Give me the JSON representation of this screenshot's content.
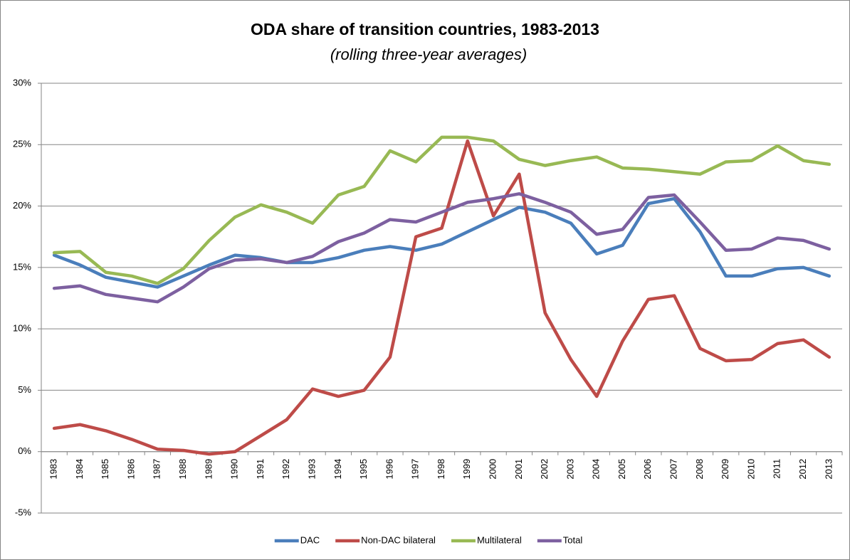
{
  "chart_data": {
    "type": "line",
    "title": "ODA share of transition countries, 1983-2013",
    "subtitle": "(rolling three-year averages)",
    "categories": [
      "1983",
      "1984",
      "1985",
      "1986",
      "1987",
      "1988",
      "1989",
      "1990",
      "1991",
      "1992",
      "1993",
      "1994",
      "1995",
      "1996",
      "1997",
      "1998",
      "1999",
      "2000",
      "2001",
      "2002",
      "2003",
      "2004",
      "2005",
      "2006",
      "2007",
      "2008",
      "2009",
      "2010",
      "2011",
      "2012",
      "2013"
    ],
    "series": [
      {
        "name": "DAC",
        "color": "#4a7ebb",
        "values": [
          16.0,
          15.2,
          14.2,
          13.8,
          13.4,
          14.3,
          15.2,
          16.0,
          15.8,
          15.4,
          15.4,
          15.8,
          16.4,
          16.7,
          16.4,
          16.9,
          17.9,
          18.9,
          19.9,
          19.5,
          18.6,
          16.1,
          16.8,
          20.2,
          20.6,
          17.9,
          14.3,
          14.3,
          14.9,
          15.0,
          14.3
        ]
      },
      {
        "name": "Non-DAC bilateral",
        "color": "#be4b48",
        "values": [
          1.9,
          2.2,
          1.7,
          1.0,
          0.2,
          0.1,
          -0.2,
          0.0,
          1.3,
          2.6,
          5.1,
          4.5,
          5.0,
          7.7,
          17.5,
          18.2,
          25.3,
          19.2,
          22.6,
          11.3,
          7.5,
          4.5,
          9.0,
          12.4,
          12.7,
          8.4,
          7.4,
          7.5,
          8.8,
          9.1,
          7.7
        ]
      },
      {
        "name": "Multilateral",
        "color": "#98b954",
        "values": [
          16.2,
          16.3,
          14.6,
          14.3,
          13.7,
          14.9,
          17.2,
          19.1,
          20.1,
          19.5,
          18.6,
          20.9,
          21.6,
          24.5,
          23.6,
          25.6,
          25.6,
          25.3,
          23.8,
          23.3,
          23.7,
          24.0,
          23.1,
          23.0,
          22.8,
          22.6,
          23.6,
          23.7,
          24.9,
          23.7,
          23.4
        ]
      },
      {
        "name": "Total",
        "color": "#7d60a0",
        "values": [
          13.3,
          13.5,
          12.8,
          12.5,
          12.2,
          13.4,
          14.9,
          15.6,
          15.7,
          15.4,
          15.9,
          17.1,
          17.8,
          18.9,
          18.7,
          19.5,
          20.3,
          20.6,
          21.0,
          20.3,
          19.5,
          17.7,
          18.1,
          20.7,
          20.9,
          18.7,
          16.4,
          16.5,
          17.4,
          17.2,
          16.5
        ]
      }
    ],
    "ylim": [
      -5,
      30
    ],
    "yticks": [
      {
        "value": -5,
        "label": "-5%"
      },
      {
        "value": 0,
        "label": "0%"
      },
      {
        "value": 5,
        "label": "5%"
      },
      {
        "value": 10,
        "label": "10%"
      },
      {
        "value": 15,
        "label": "15%"
      },
      {
        "value": 20,
        "label": "20%"
      },
      {
        "value": 25,
        "label": "25%"
      },
      {
        "value": 30,
        "label": "30%"
      }
    ],
    "grid": true,
    "legend": "bottom"
  }
}
